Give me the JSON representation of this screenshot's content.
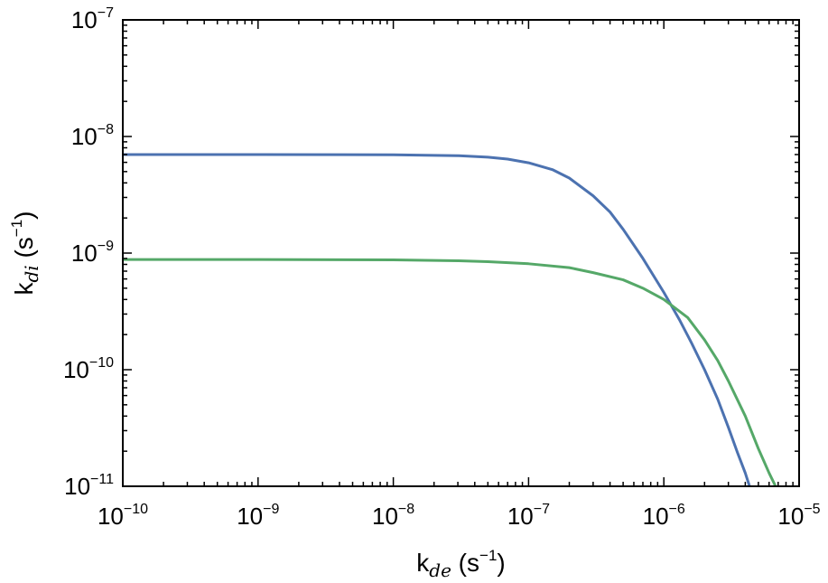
{
  "chart_data": {
    "type": "line",
    "xlabel": {
      "main": "k",
      "sub": "de",
      "unit_open": " (s",
      "unit_exp": "−1",
      "unit_close": ")"
    },
    "ylabel": {
      "main": "k",
      "sub": "di",
      "unit_open": " (s",
      "unit_exp": "−1",
      "unit_close": ")"
    },
    "xscale": "log",
    "yscale": "log",
    "xlim": [
      1e-10,
      1e-05
    ],
    "ylim": [
      1e-11,
      1e-07
    ],
    "grid": false,
    "xticks": [
      {
        "base": "10",
        "exp": "−10",
        "value": 1e-10
      },
      {
        "base": "10",
        "exp": "−9",
        "value": 1e-09
      },
      {
        "base": "10",
        "exp": "−8",
        "value": 1e-08
      },
      {
        "base": "10",
        "exp": "−7",
        "value": 1e-07
      },
      {
        "base": "10",
        "exp": "−6",
        "value": 1e-06
      },
      {
        "base": "10",
        "exp": "−5",
        "value": 1e-05
      }
    ],
    "yticks": [
      {
        "base": "10",
        "exp": "−11",
        "value": 1e-11
      },
      {
        "base": "10",
        "exp": "−10",
        "value": 1e-10
      },
      {
        "base": "10",
        "exp": "−9",
        "value": 1e-09
      },
      {
        "base": "10",
        "exp": "−8",
        "value": 1e-08
      },
      {
        "base": "10",
        "exp": "−7",
        "value": 1e-07
      }
    ],
    "series": [
      {
        "color": "#4c72b0",
        "points": [
          [
            1e-10,
            7e-09
          ],
          [
            1e-09,
            7e-09
          ],
          [
            1e-08,
            6.97e-09
          ],
          [
            3e-08,
            6.85e-09
          ],
          [
            5e-08,
            6.65e-09
          ],
          [
            7e-08,
            6.4e-09
          ],
          [
            1e-07,
            5.95e-09
          ],
          [
            1.5e-07,
            5.2e-09
          ],
          [
            2e-07,
            4.4e-09
          ],
          [
            3e-07,
            3.1e-09
          ],
          [
            4e-07,
            2.25e-09
          ],
          [
            5e-07,
            1.6e-09
          ],
          [
            7e-07,
            9e-10
          ],
          [
            1e-06,
            4.6e-10
          ],
          [
            1.3e-06,
            2.7e-10
          ],
          [
            1.6e-06,
            1.7e-10
          ],
          [
            2e-06,
            1e-10
          ],
          [
            2.5e-06,
            5.6e-11
          ],
          [
            3e-06,
            3.2e-11
          ],
          [
            3.5e-06,
            1.95e-11
          ],
          [
            4e-06,
            1.3e-11
          ],
          [
            4.3e-06,
            1e-11
          ]
        ]
      },
      {
        "color": "#55a868",
        "points": [
          [
            1e-10,
            8.8e-10
          ],
          [
            1e-09,
            8.8e-10
          ],
          [
            1e-08,
            8.75e-10
          ],
          [
            3e-08,
            8.6e-10
          ],
          [
            5e-08,
            8.45e-10
          ],
          [
            1e-07,
            8.1e-10
          ],
          [
            2e-07,
            7.5e-10
          ],
          [
            3e-07,
            6.8e-10
          ],
          [
            5e-07,
            5.9e-10
          ],
          [
            7e-07,
            5e-10
          ],
          [
            1e-06,
            4e-10
          ],
          [
            1.5e-06,
            2.8e-10
          ],
          [
            2e-06,
            1.8e-10
          ],
          [
            2.5e-06,
            1.2e-10
          ],
          [
            3e-06,
            8e-11
          ],
          [
            4e-06,
            4e-11
          ],
          [
            5e-06,
            2.1e-11
          ],
          [
            6e-06,
            1.3e-11
          ],
          [
            6.7e-06,
            1e-11
          ]
        ]
      }
    ]
  }
}
